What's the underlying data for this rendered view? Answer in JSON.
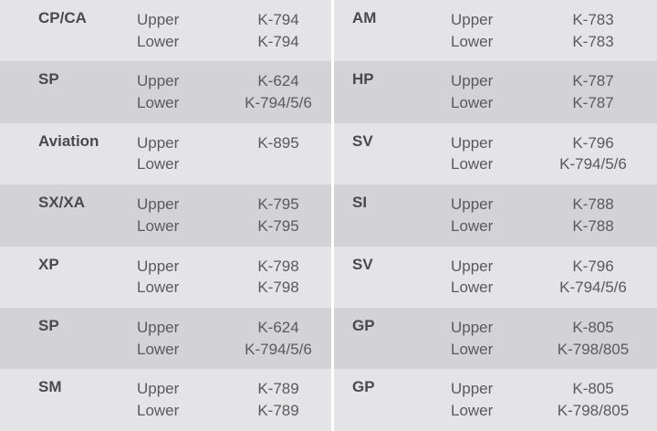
{
  "left": [
    {
      "name": "CP/CA",
      "upper": "Upper",
      "lower": "Lower",
      "upper_code": "K-794",
      "lower_code": "K-794"
    },
    {
      "name": "SP",
      "upper": "Upper",
      "lower": "Lower",
      "upper_code": "K-624",
      "lower_code": "K-794/5/6"
    },
    {
      "name": "Aviation",
      "upper": "Upper",
      "lower": "Lower",
      "upper_code": "K-895",
      "lower_code": ""
    },
    {
      "name": "SX/XA",
      "upper": "Upper",
      "lower": "Lower",
      "upper_code": "K-795",
      "lower_code": "K-795"
    },
    {
      "name": "XP",
      "upper": "Upper",
      "lower": "Lower",
      "upper_code": "K-798",
      "lower_code": "K-798"
    },
    {
      "name": "SP",
      "upper": "Upper",
      "lower": "Lower",
      "upper_code": "K-624",
      "lower_code": "K-794/5/6"
    },
    {
      "name": "SM",
      "upper": "Upper",
      "lower": "Lower",
      "upper_code": "K-789",
      "lower_code": "K-789"
    }
  ],
  "right": [
    {
      "name": "AM",
      "upper": "Upper",
      "lower": "Lower",
      "upper_code": "K-783",
      "lower_code": "K-783"
    },
    {
      "name": "HP",
      "upper": "Upper",
      "lower": "Lower",
      "upper_code": "K-787",
      "lower_code": "K-787"
    },
    {
      "name": "SV",
      "upper": "Upper",
      "lower": "Lower",
      "upper_code": "K-796",
      "lower_code": "K-794/5/6"
    },
    {
      "name": "SI",
      "upper": "Upper",
      "lower": "Lower",
      "upper_code": "K-788",
      "lower_code": "K-788"
    },
    {
      "name": "SV",
      "upper": "Upper",
      "lower": "Lower",
      "upper_code": "K-796",
      "lower_code": "K-794/5/6"
    },
    {
      "name": "GP",
      "upper": "Upper",
      "lower": "Lower",
      "upper_code": "K-805",
      "lower_code": "K-798/805"
    },
    {
      "name": "GP",
      "upper": "Upper",
      "lower": "Lower",
      "upper_code": "K-805",
      "lower_code": "K-798/805"
    }
  ]
}
